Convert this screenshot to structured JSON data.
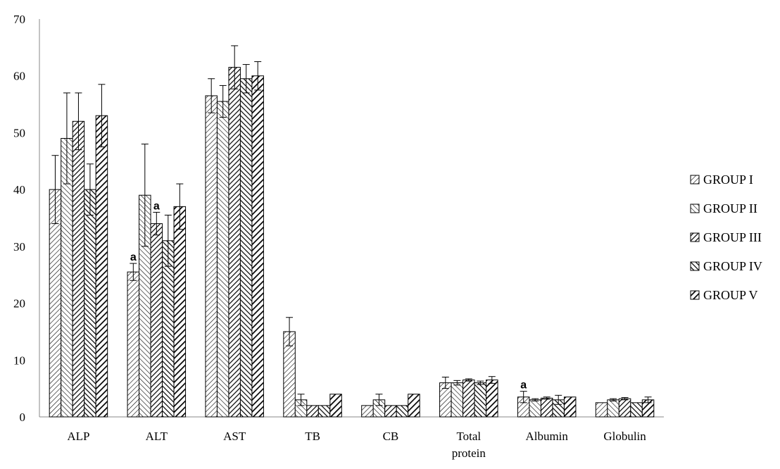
{
  "chart_data": {
    "type": "bar",
    "title": "",
    "xlabel": "",
    "ylabel": "",
    "ylim": [
      0,
      70
    ],
    "yticks": [
      0,
      10,
      20,
      30,
      40,
      50,
      60,
      70
    ],
    "grid": false,
    "legend_position": "right",
    "categories": [
      "ALP",
      "ALT",
      "AST",
      "TB",
      "CB",
      "Total protein",
      "Albumin",
      "Globulin"
    ],
    "category_label_lines": [
      [
        "ALP"
      ],
      [
        "ALT"
      ],
      [
        "AST"
      ],
      [
        "TB"
      ],
      [
        "CB"
      ],
      [
        "Total",
        "protein"
      ],
      [
        "Albumin"
      ],
      [
        "Globulin"
      ]
    ],
    "series": [
      {
        "name": "GROUP I",
        "pattern": "diag-thin-down",
        "values": [
          40,
          25.5,
          56.5,
          15,
          2,
          6,
          3.5,
          2.5
        ],
        "errors": [
          6,
          1.5,
          3,
          2.5,
          0,
          1,
          1,
          0
        ]
      },
      {
        "name": "GROUP II",
        "pattern": "diag-thin-up",
        "values": [
          49,
          39,
          55.5,
          3,
          3,
          6,
          3,
          3
        ],
        "errors": [
          8,
          9,
          2.8,
          1,
          1,
          0.4,
          0.2,
          0.2
        ]
      },
      {
        "name": "GROUP III",
        "pattern": "diag-med-down",
        "values": [
          52,
          34,
          61.5,
          2,
          2,
          6.5,
          3.3,
          3.2
        ],
        "errors": [
          5,
          2,
          3.8,
          0,
          0,
          0.2,
          0.2,
          0.2
        ]
      },
      {
        "name": "GROUP IV",
        "pattern": "diag-med-up",
        "values": [
          40,
          31,
          59.5,
          2,
          2,
          6,
          3,
          2.5
        ],
        "errors": [
          4.5,
          4.5,
          2.5,
          0,
          0,
          0.3,
          0.8,
          0
        ]
      },
      {
        "name": "GROUP V",
        "pattern": "diag-thick-down",
        "values": [
          53,
          37,
          60,
          4,
          4,
          6.5,
          3.5,
          3
        ],
        "errors": [
          5.5,
          4,
          2.5,
          0,
          0,
          0.6,
          0,
          0.5
        ]
      }
    ],
    "annotations": [
      {
        "text": "a",
        "category": "ALT",
        "series": "GROUP I"
      },
      {
        "text": "a",
        "category": "ALT",
        "series": "GROUP III"
      },
      {
        "text": "a",
        "category": "Albumin",
        "series": "GROUP I"
      }
    ]
  }
}
